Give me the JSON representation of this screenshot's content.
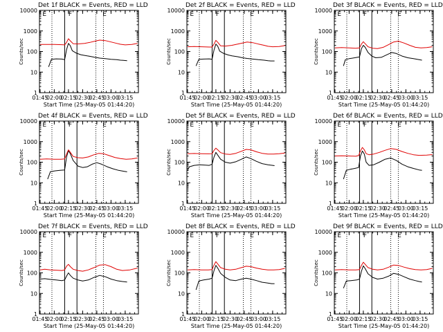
{
  "figure": {
    "xlabel": "Start Time (25-May-05 01:44:20)",
    "ylabel": "Counts/sec",
    "ytick_labels": [
      "1",
      "10",
      "100",
      "1000",
      "10000"
    ],
    "yticks": [
      1,
      10,
      100,
      1000,
      10000
    ],
    "xtick_labels": [
      "01:45",
      "02:00",
      "02:15",
      "02:30",
      "02:45",
      "03:00",
      "03:15"
    ],
    "xticks_min": [
      105,
      120,
      135,
      150,
      165,
      180,
      195
    ],
    "colors": {
      "events": "#000000",
      "lld": "#e00000"
    }
  },
  "chart_data": [
    {
      "type": "line",
      "title": "Det 1f BLACK = Events, RED = LLD",
      "x_range_min": [
        104.33,
        209
      ],
      "ylim": [
        1,
        10000
      ],
      "log_y": true,
      "series": [
        {
          "name": "BLACK = Events",
          "color": "#000000",
          "x": [
            114,
            117,
            122,
            128,
            131,
            133,
            135,
            137,
            139,
            143,
            148,
            152,
            158,
            163,
            168,
            174,
            180,
            186,
            190,
            193,
            197
          ],
          "y": [
            18,
            42,
            44,
            43,
            40,
            125,
            250,
            190,
            110,
            85,
            70,
            65,
            58,
            52,
            48,
            45,
            42,
            40,
            38,
            37,
            36
          ]
        },
        {
          "name": "RED = LLD",
          "color": "#e00000",
          "x": [
            105,
            112,
            120,
            128,
            131,
            133,
            135,
            137,
            140,
            145,
            152,
            158,
            163,
            168,
            174,
            180,
            186,
            190,
            195,
            202,
            208
          ],
          "y": [
            220,
            222,
            220,
            215,
            210,
            280,
            420,
            330,
            240,
            235,
            250,
            280,
            320,
            360,
            340,
            290,
            250,
            225,
            210,
            220,
            250
          ]
        }
      ],
      "annotations": [
        "E",
        "F",
        "E"
      ]
    },
    {
      "type": "line",
      "title": "Det 2f BLACK = Events, RED = LLD",
      "x_range_min": [
        104.33,
        209
      ],
      "ylim": [
        1,
        10000
      ],
      "log_y": true,
      "series": [
        {
          "name": "BLACK = Events",
          "color": "#000000",
          "x": [
            114,
            117,
            122,
            128,
            131,
            133,
            135,
            137,
            139,
            143,
            148,
            152,
            158,
            163,
            168,
            174,
            180,
            186,
            190,
            193,
            197
          ],
          "y": [
            20,
            42,
            43,
            44,
            42,
            120,
            230,
            180,
            105,
            82,
            68,
            62,
            56,
            50,
            46,
            43,
            40,
            38,
            36,
            35,
            35
          ]
        },
        {
          "name": "RED = LLD",
          "color": "#e00000",
          "x": [
            105,
            112,
            120,
            128,
            131,
            133,
            135,
            137,
            140,
            145,
            152,
            158,
            163,
            168,
            174,
            180,
            186,
            190,
            195,
            202,
            208
          ],
          "y": [
            170,
            175,
            170,
            165,
            165,
            230,
            350,
            280,
            190,
            185,
            200,
            230,
            260,
            290,
            270,
            230,
            200,
            180,
            170,
            175,
            195
          ]
        }
      ],
      "annotations": [
        "E",
        "F",
        "E"
      ]
    },
    {
      "type": "line",
      "title": "Det 3f BLACK = Events, RED = LLD",
      "x_range_min": [
        104.33,
        209
      ],
      "ylim": [
        1,
        10000
      ],
      "log_y": true,
      "series": [
        {
          "name": "BLACK = Events",
          "color": "#000000",
          "x": [
            114,
            116,
            120,
            126,
            131,
            133,
            135,
            137,
            140,
            144,
            148,
            154,
            160,
            165,
            170,
            176,
            182,
            188,
            194,
            197
          ],
          "y": [
            20,
            40,
            45,
            50,
            55,
            140,
            200,
            160,
            90,
            60,
            50,
            52,
            70,
            90,
            80,
            60,
            50,
            45,
            40,
            38
          ]
        },
        {
          "name": "RED = LLD",
          "color": "#e00000",
          "x": [
            105,
            112,
            120,
            127,
            131,
            133,
            135,
            137,
            140,
            145,
            150,
            156,
            162,
            167,
            172,
            178,
            184,
            190,
            196,
            202,
            208
          ],
          "y": [
            150,
            155,
            150,
            145,
            150,
            230,
            300,
            240,
            170,
            145,
            140,
            160,
            220,
            290,
            320,
            260,
            200,
            160,
            150,
            155,
            170
          ]
        }
      ],
      "annotations": [
        "E",
        "F",
        "E"
      ]
    },
    {
      "type": "line",
      "title": "Det 4f BLACK = Events, RED = LLD",
      "x_range_min": [
        104.33,
        209
      ],
      "ylim": [
        1,
        10000
      ],
      "log_y": true,
      "series": [
        {
          "name": "BLACK = Events",
          "color": "#000000",
          "x": [
            113,
            116,
            121,
            126,
            131,
            133,
            135,
            137,
            140,
            145,
            150,
            155,
            160,
            165,
            170,
            176,
            182,
            188,
            194,
            197
          ],
          "y": [
            15,
            35,
            38,
            40,
            42,
            180,
            370,
            260,
            120,
            65,
            55,
            60,
            80,
            95,
            80,
            60,
            48,
            40,
            36,
            34
          ]
        },
        {
          "name": "RED = LLD",
          "color": "#e00000",
          "x": [
            105,
            112,
            120,
            127,
            131,
            133,
            135,
            137,
            140,
            145,
            150,
            156,
            162,
            167,
            172,
            178,
            184,
            190,
            196,
            202,
            208
          ],
          "y": [
            140,
            145,
            140,
            140,
            145,
            250,
            400,
            300,
            190,
            165,
            160,
            180,
            230,
            270,
            260,
            210,
            170,
            150,
            140,
            145,
            160
          ]
        }
      ],
      "annotations": [
        "E",
        "F",
        "E"
      ]
    },
    {
      "type": "line",
      "title": "Det 5f BLACK = Events, RED = LLD",
      "x_range_min": [
        104.33,
        209
      ],
      "ylim": [
        1,
        10000
      ],
      "log_y": true,
      "series": [
        {
          "name": "BLACK = Events",
          "color": "#000000",
          "x": [
            105,
            107,
            112,
            118,
            124,
            128,
            131,
            133,
            135,
            137,
            140,
            145,
            150,
            156,
            162,
            167,
            172,
            178,
            184,
            190,
            195,
            197
          ],
          "y": [
            40,
            60,
            70,
            75,
            72,
            70,
            80,
            180,
            300,
            220,
            140,
            100,
            90,
            105,
            140,
            180,
            150,
            110,
            85,
            75,
            70,
            68
          ]
        },
        {
          "name": "RED = LLD",
          "color": "#e00000",
          "x": [
            105,
            112,
            120,
            127,
            131,
            133,
            135,
            137,
            140,
            145,
            150,
            156,
            162,
            167,
            172,
            178,
            184,
            190,
            196,
            202,
            208
          ],
          "y": [
            260,
            265,
            260,
            255,
            260,
            380,
            480,
            400,
            290,
            250,
            240,
            270,
            340,
            420,
            400,
            320,
            270,
            250,
            250,
            260,
            280
          ]
        }
      ],
      "annotations": [
        "E",
        "F",
        "E"
      ]
    },
    {
      "type": "line",
      "title": "Det 6f BLACK = Events, RED = LLD",
      "x_range_min": [
        104.33,
        209
      ],
      "ylim": [
        1,
        10000
      ],
      "log_y": true,
      "series": [
        {
          "name": "BLACK = Events",
          "color": "#000000",
          "x": [
            114,
            117,
            121,
            126,
            130,
            132,
            134,
            136,
            138,
            141,
            146,
            152,
            158,
            164,
            170,
            176,
            182,
            188,
            194,
            197
          ],
          "y": [
            15,
            40,
            45,
            50,
            55,
            200,
            350,
            250,
            100,
            70,
            75,
            100,
            140,
            160,
            120,
            80,
            60,
            50,
            42,
            40
          ]
        },
        {
          "name": "RED = LLD",
          "color": "#e00000",
          "x": [
            105,
            112,
            120,
            127,
            130,
            132,
            134,
            136,
            138,
            141,
            146,
            152,
            158,
            164,
            170,
            176,
            182,
            188,
            194,
            202,
            208
          ],
          "y": [
            200,
            205,
            200,
            195,
            210,
            350,
            520,
            400,
            260,
            230,
            250,
            300,
            380,
            460,
            420,
            330,
            270,
            230,
            215,
            220,
            235
          ]
        }
      ],
      "annotations": [
        "E",
        "F",
        "E"
      ]
    },
    {
      "type": "line",
      "title": "Det 7f BLACK = Events, RED = LLD",
      "x_range_min": [
        104.33,
        209
      ],
      "ylim": [
        1,
        10000
      ],
      "log_y": true,
      "series": [
        {
          "name": "BLACK = Events",
          "color": "#000000",
          "x": [
            105,
            110,
            116,
            122,
            128,
            131,
            133,
            135,
            137,
            140,
            145,
            150,
            156,
            162,
            168,
            174,
            180,
            186,
            192,
            197
          ],
          "y": [
            50,
            52,
            48,
            45,
            42,
            45,
            70,
            100,
            75,
            55,
            45,
            40,
            45,
            60,
            75,
            65,
            50,
            42,
            38,
            36
          ]
        },
        {
          "name": "RED = LLD",
          "color": "#e00000",
          "x": [
            105,
            110,
            116,
            122,
            128,
            131,
            133,
            135,
            137,
            140,
            145,
            150,
            156,
            162,
            168,
            174,
            180,
            186,
            192,
            200,
            208
          ],
          "y": [
            140,
            150,
            140,
            135,
            130,
            140,
            210,
            260,
            200,
            150,
            130,
            120,
            140,
            180,
            240,
            250,
            200,
            150,
            130,
            140,
            170
          ]
        }
      ],
      "annotations": [
        "E",
        "F",
        "E"
      ]
    },
    {
      "type": "line",
      "title": "Det 8f BLACK = Events, RED = LLD",
      "x_range_min": [
        104.33,
        209
      ],
      "ylim": [
        1,
        10000
      ],
      "log_y": true,
      "series": [
        {
          "name": "BLACK = Events",
          "color": "#000000",
          "x": [
            114,
            117,
            122,
            128,
            131,
            133,
            135,
            137,
            140,
            145,
            150,
            156,
            162,
            167,
            172,
            178,
            184,
            190,
            194,
            197
          ],
          "y": [
            15,
            40,
            45,
            50,
            55,
            130,
            230,
            170,
            95,
            60,
            45,
            42,
            50,
            55,
            50,
            42,
            35,
            32,
            30,
            30
          ]
        },
        {
          "name": "RED = LLD",
          "color": "#e00000",
          "x": [
            105,
            112,
            120,
            127,
            131,
            133,
            135,
            137,
            140,
            145,
            150,
            156,
            162,
            167,
            172,
            178,
            184,
            190,
            196,
            202,
            208
          ],
          "y": [
            140,
            145,
            140,
            140,
            145,
            240,
            350,
            270,
            180,
            150,
            140,
            150,
            180,
            210,
            200,
            170,
            150,
            140,
            140,
            145,
            165
          ]
        }
      ],
      "annotations": [
        "E",
        "F",
        "E"
      ]
    },
    {
      "type": "line",
      "title": "Det 9f BLACK = Events, RED = LLD",
      "x_range_min": [
        104.33,
        209
      ],
      "ylim": [
        1,
        10000
      ],
      "log_y": true,
      "series": [
        {
          "name": "BLACK = Events",
          "color": "#000000",
          "x": [
            114,
            117,
            122,
            128,
            131,
            133,
            135,
            137,
            140,
            145,
            150,
            156,
            162,
            167,
            172,
            178,
            184,
            190,
            194,
            197
          ],
          "y": [
            18,
            40,
            42,
            45,
            50,
            120,
            220,
            160,
            90,
            60,
            50,
            55,
            70,
            95,
            85,
            65,
            50,
            42,
            38,
            36
          ]
        },
        {
          "name": "RED = LLD",
          "color": "#e00000",
          "x": [
            105,
            112,
            120,
            127,
            131,
            133,
            135,
            137,
            140,
            145,
            150,
            156,
            162,
            167,
            172,
            178,
            184,
            190,
            196,
            202,
            208
          ],
          "y": [
            140,
            145,
            140,
            140,
            145,
            230,
            330,
            260,
            180,
            150,
            140,
            150,
            190,
            240,
            230,
            190,
            160,
            145,
            140,
            145,
            165
          ]
        }
      ],
      "annotations": [
        "E",
        "F",
        "E"
      ]
    }
  ]
}
